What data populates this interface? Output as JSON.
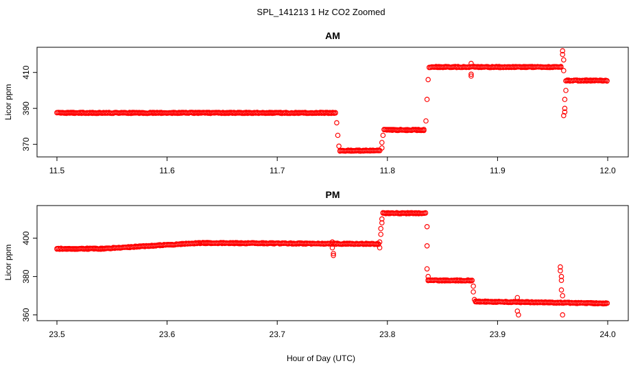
{
  "figure": {
    "title": "SPL_141213  1 Hz CO2 Zoomed",
    "xlabel": "Hour of Day (UTC)"
  },
  "chart_data": [
    {
      "type": "scatter",
      "title": "AM",
      "xlabel": "Hour of Day (UTC)",
      "ylabel": "Licor ppm",
      "xlim": [
        11.5,
        12.0
      ],
      "ylim": [
        363,
        424
      ],
      "xticks": [
        11.5,
        11.6,
        11.7,
        11.8,
        11.9,
        12.0
      ],
      "xtick_labels": [
        "11.5",
        "11.6",
        "11.7",
        "11.8",
        "11.9",
        "12.0"
      ],
      "yticks": [
        370,
        390,
        410
      ],
      "ytick_labels": [
        "370",
        "390",
        "410"
      ],
      "grid": false,
      "marker_color": "#ff0000",
      "segments": [
        {
          "x_start": 11.5,
          "x_end": 11.753,
          "y": 387.5
        },
        {
          "x_start": 11.757,
          "x_end": 11.794,
          "y": 366.5
        },
        {
          "x_start": 11.797,
          "x_end": 11.834,
          "y": 378.0
        },
        {
          "x_start": 11.838,
          "x_end": 11.958,
          "y": 413.0
        },
        {
          "x_start": 11.962,
          "x_end": 12.0,
          "y": 405.5
        }
      ],
      "outliers": [
        {
          "x": 11.754,
          "y": 382
        },
        {
          "x": 11.755,
          "y": 375
        },
        {
          "x": 11.756,
          "y": 369
        },
        {
          "x": 11.795,
          "y": 368
        },
        {
          "x": 11.795,
          "y": 371
        },
        {
          "x": 11.796,
          "y": 375
        },
        {
          "x": 11.835,
          "y": 383
        },
        {
          "x": 11.836,
          "y": 395
        },
        {
          "x": 11.837,
          "y": 406
        },
        {
          "x": 11.876,
          "y": 408
        },
        {
          "x": 11.876,
          "y": 409
        },
        {
          "x": 11.876,
          "y": 415
        },
        {
          "x": 11.959,
          "y": 422
        },
        {
          "x": 11.959,
          "y": 420
        },
        {
          "x": 11.96,
          "y": 417
        },
        {
          "x": 11.96,
          "y": 411
        },
        {
          "x": 11.96,
          "y": 386
        },
        {
          "x": 11.961,
          "y": 388
        },
        {
          "x": 11.961,
          "y": 395
        },
        {
          "x": 11.961,
          "y": 390
        },
        {
          "x": 11.962,
          "y": 400
        }
      ]
    },
    {
      "type": "scatter",
      "title": "PM",
      "xlabel": "Hour of Day (UTC)",
      "ylabel": "Licor ppm",
      "xlim": [
        23.48,
        24.02
      ],
      "ylim": [
        357,
        417
      ],
      "xticks": [
        23.5,
        23.6,
        23.7,
        23.8,
        23.9,
        24.0
      ],
      "xtick_labels": [
        "23.5",
        "23.6",
        "23.7",
        "23.8",
        "23.9",
        "24.0"
      ],
      "yticks": [
        360,
        380,
        400
      ],
      "ytick_labels": [
        "360",
        "380",
        "400"
      ],
      "grid": false,
      "marker_color": "#ff0000",
      "segments": [
        {
          "x_start": 23.5,
          "x_end": 23.54,
          "y_start": 394.5,
          "y_end": 394.5
        },
        {
          "x_start": 23.54,
          "x_end": 23.63,
          "y_start": 394.5,
          "y_end": 397.5
        },
        {
          "x_start": 23.63,
          "x_end": 23.792,
          "y_start": 397.5,
          "y_end": 397.0
        },
        {
          "x_start": 23.796,
          "x_end": 23.835,
          "y_start": 413.0,
          "y_end": 413.0
        },
        {
          "x_start": 23.837,
          "x_end": 23.877,
          "y_start": 378.0,
          "y_end": 378.0
        },
        {
          "x_start": 23.88,
          "x_end": 24.0,
          "y_start": 367.0,
          "y_end": 366.0
        }
      ],
      "outliers": [
        {
          "x": 23.75,
          "y": 398
        },
        {
          "x": 23.75,
          "y": 395
        },
        {
          "x": 23.751,
          "y": 392
        },
        {
          "x": 23.751,
          "y": 391
        },
        {
          "x": 23.793,
          "y": 395
        },
        {
          "x": 23.793,
          "y": 398
        },
        {
          "x": 23.794,
          "y": 402
        },
        {
          "x": 23.794,
          "y": 405
        },
        {
          "x": 23.795,
          "y": 408
        },
        {
          "x": 23.795,
          "y": 410
        },
        {
          "x": 23.836,
          "y": 406
        },
        {
          "x": 23.836,
          "y": 396
        },
        {
          "x": 23.836,
          "y": 384
        },
        {
          "x": 23.837,
          "y": 380
        },
        {
          "x": 23.878,
          "y": 375
        },
        {
          "x": 23.878,
          "y": 372
        },
        {
          "x": 23.879,
          "y": 368
        },
        {
          "x": 23.918,
          "y": 369
        },
        {
          "x": 23.918,
          "y": 362
        },
        {
          "x": 23.919,
          "y": 360
        },
        {
          "x": 23.957,
          "y": 385
        },
        {
          "x": 23.957,
          "y": 383
        },
        {
          "x": 23.958,
          "y": 380
        },
        {
          "x": 23.958,
          "y": 378
        },
        {
          "x": 23.958,
          "y": 373
        },
        {
          "x": 23.959,
          "y": 370
        },
        {
          "x": 23.959,
          "y": 360
        }
      ]
    }
  ]
}
